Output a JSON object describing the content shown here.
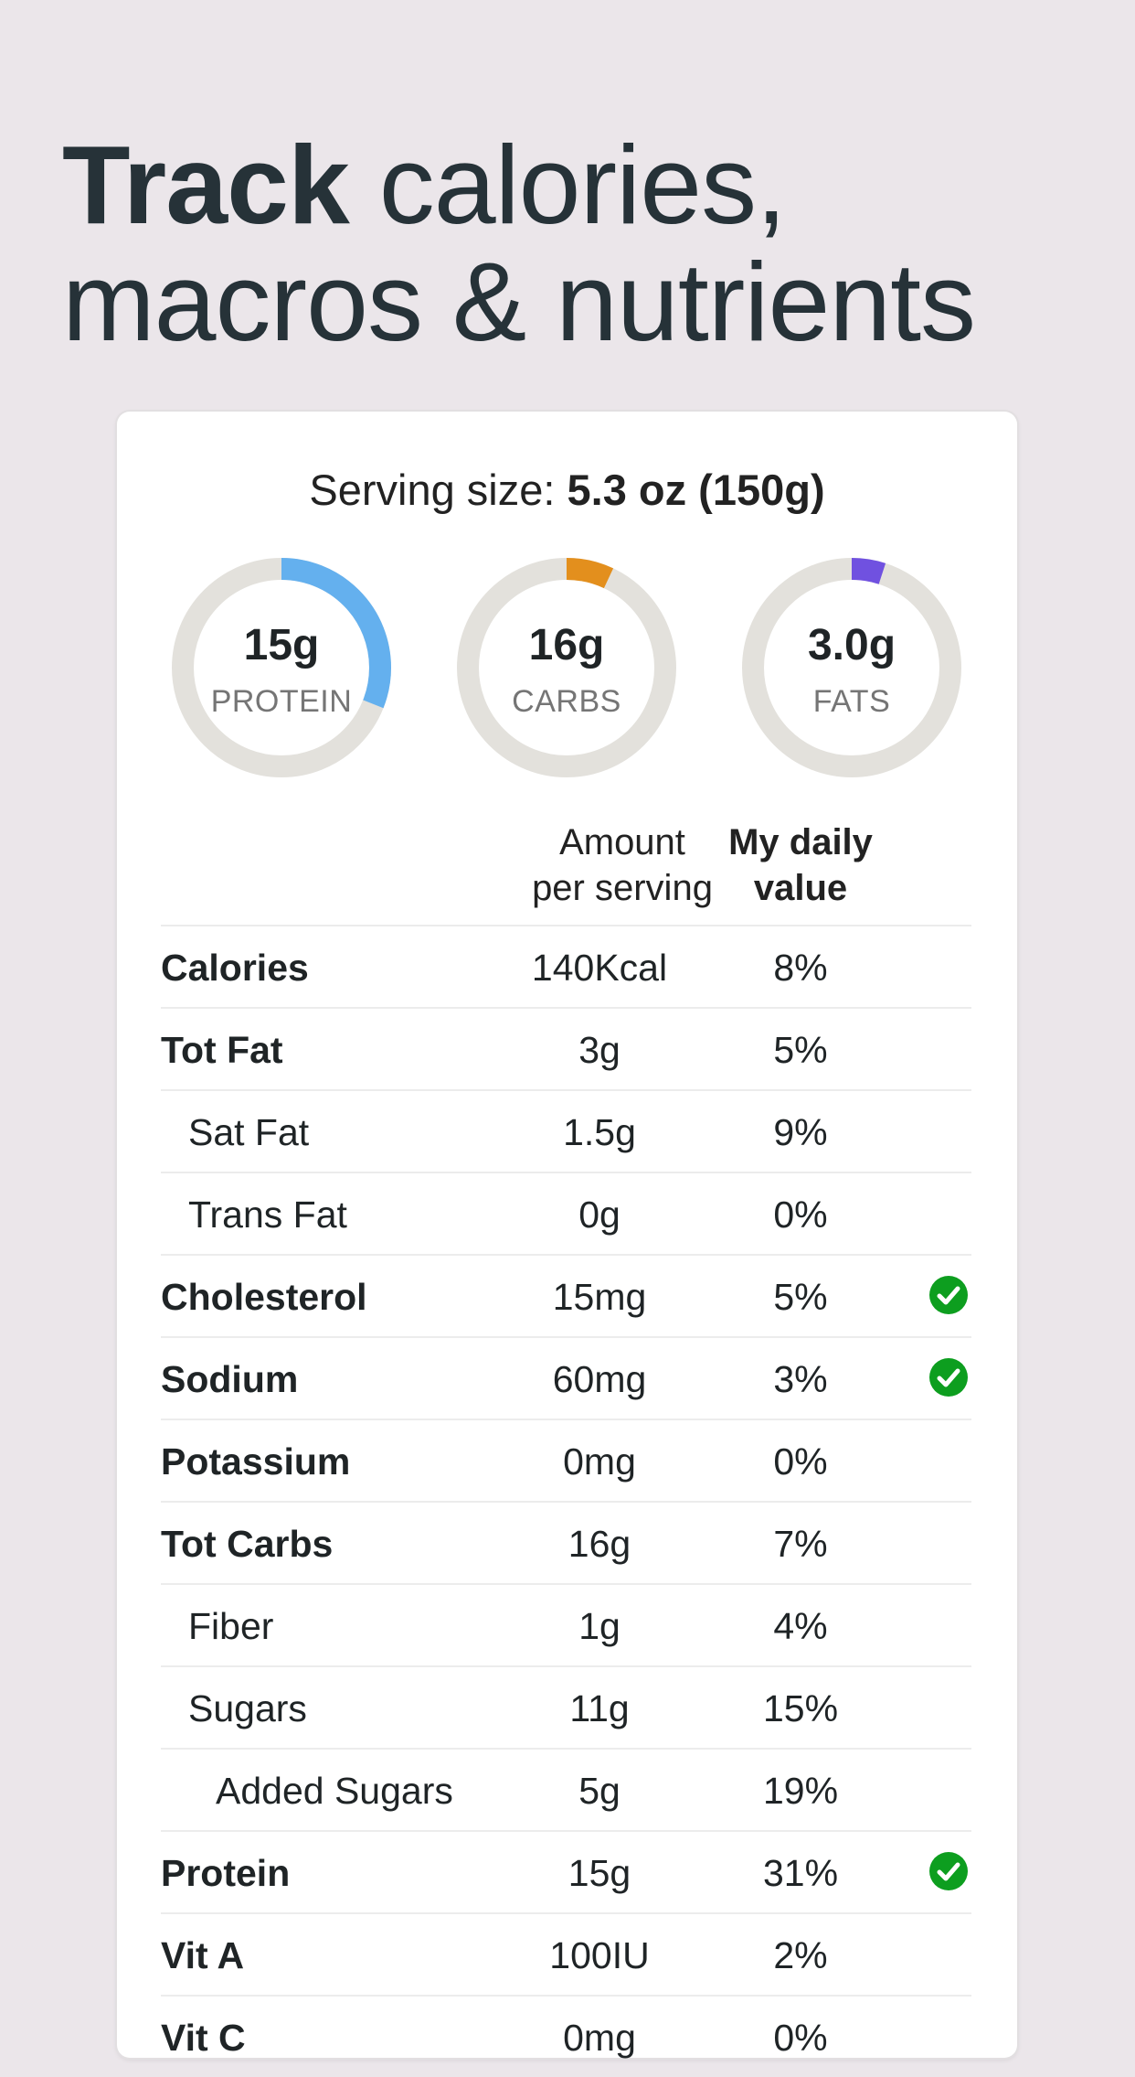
{
  "headline": {
    "bold": "Track",
    "rest1": " calories,",
    "line2": "macros & nutrients"
  },
  "serving": {
    "label": "Serving size: ",
    "value": "5.3 oz (150g)"
  },
  "macros": [
    {
      "amount": "15g",
      "label": "PROTEIN",
      "fraction": 0.31,
      "color": "#64b0ee"
    },
    {
      "amount": "16g",
      "label": "CARBS",
      "fraction": 0.07,
      "color": "#e38f1d"
    },
    {
      "amount": "3.0g",
      "label": "FATS",
      "fraction": 0.05,
      "color": "#7051e0"
    }
  ],
  "columns": {
    "amount_line1": "Amount",
    "amount_line2": "per serving",
    "daily_line1": "My daily",
    "daily_line2": "value"
  },
  "rows": [
    {
      "name": "Calories",
      "amount": "140Kcal",
      "dv": "8%",
      "bold": true,
      "indent": 0,
      "check": false
    },
    {
      "name": "Tot Fat",
      "amount": "3g",
      "dv": "5%",
      "bold": true,
      "indent": 0,
      "check": false
    },
    {
      "name": "Sat Fat",
      "amount": "1.5g",
      "dv": "9%",
      "bold": false,
      "indent": 1,
      "check": false
    },
    {
      "name": "Trans Fat",
      "amount": "0g",
      "dv": "0%",
      "bold": false,
      "indent": 1,
      "check": false
    },
    {
      "name": "Cholesterol",
      "amount": "15mg",
      "dv": "5%",
      "bold": true,
      "indent": 0,
      "check": true
    },
    {
      "name": "Sodium",
      "amount": "60mg",
      "dv": "3%",
      "bold": true,
      "indent": 0,
      "check": true
    },
    {
      "name": "Potassium",
      "amount": "0mg",
      "dv": "0%",
      "bold": true,
      "indent": 0,
      "check": false
    },
    {
      "name": "Tot Carbs",
      "amount": "16g",
      "dv": "7%",
      "bold": true,
      "indent": 0,
      "check": false
    },
    {
      "name": "Fiber",
      "amount": "1g",
      "dv": "4%",
      "bold": false,
      "indent": 1,
      "check": false
    },
    {
      "name": "Sugars",
      "amount": "11g",
      "dv": "15%",
      "bold": false,
      "indent": 1,
      "check": false
    },
    {
      "name": "Added Sugars",
      "amount": "5g",
      "dv": "19%",
      "bold": false,
      "indent": 2,
      "check": false
    },
    {
      "name": "Protein",
      "amount": "15g",
      "dv": "31%",
      "bold": true,
      "indent": 0,
      "check": true
    },
    {
      "name": "Vit A",
      "amount": "100IU",
      "dv": "2%",
      "bold": true,
      "indent": 0,
      "check": false
    },
    {
      "name": "Vit C",
      "amount": "0mg",
      "dv": "0%",
      "bold": true,
      "indent": 0,
      "check": false
    }
  ],
  "colors": {
    "track": "#e3e1dc",
    "check": "#0d9e1f",
    "background": "#ebe6ea"
  },
  "icons": {
    "check": "check-circle-icon"
  }
}
